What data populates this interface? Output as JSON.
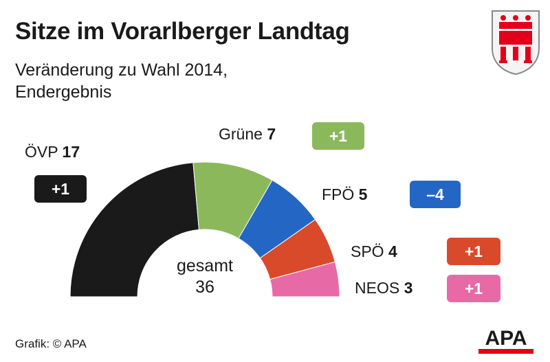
{
  "title": "Sitze im Vorarlberger Landtag",
  "subtitle_line1": "Veränderung zu Wahl 2014,",
  "subtitle_line2": "Endergebnis",
  "total_label": "gesamt",
  "total_value": "36",
  "source": "Grafik: © APA",
  "logo_text": "APA",
  "crest_icon": "vorarlberg-coat-of-arms-icon",
  "colors": {
    "ÖVP": "#1a1a1a",
    "Grüne": "#8cb85c",
    "FPÖ": "#2466c3",
    "SPÖ": "#d94a2b",
    "NEOS": "#e76aa7",
    "apa_red": "#e2001a"
  },
  "chart_data": {
    "type": "pie",
    "variant": "half-donut",
    "categories": [
      "ÖVP",
      "Grüne",
      "FPÖ",
      "SPÖ",
      "NEOS"
    ],
    "values": [
      17,
      7,
      5,
      4,
      3
    ],
    "changes": [
      "+1",
      "+1",
      "–4",
      "+1",
      "+1"
    ],
    "total": 36
  }
}
